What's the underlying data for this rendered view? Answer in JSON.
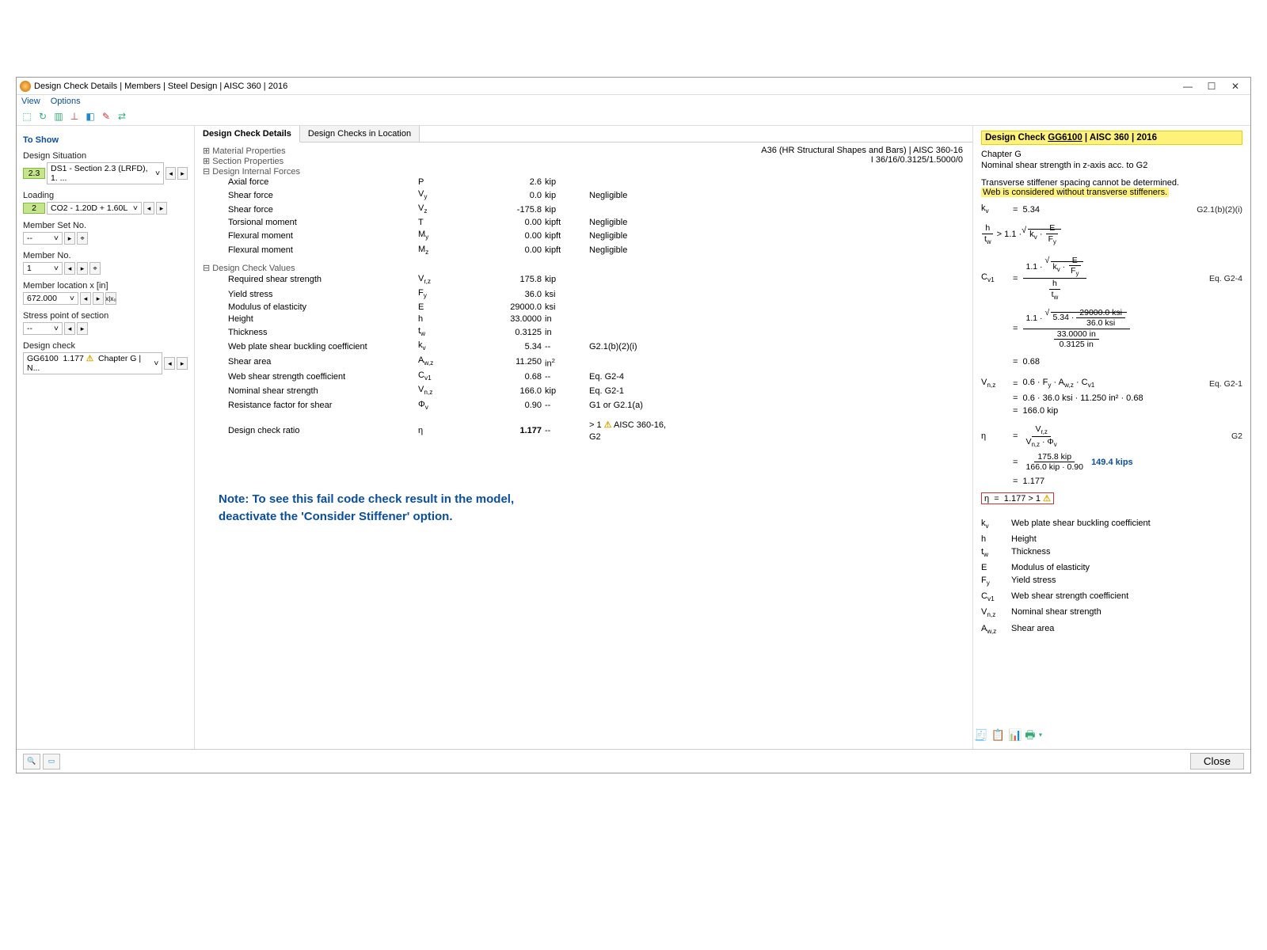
{
  "window": {
    "title": "Design Check Details | Members | Steel Design | AISC 360 | 2016",
    "menu": [
      "View",
      "Options"
    ]
  },
  "left": {
    "toShow": "To Show",
    "designSituation": {
      "label": "Design Situation",
      "badge": "2.3",
      "value": "DS1 - Section 2.3 (LRFD), 1. ..."
    },
    "loading": {
      "label": "Loading",
      "badge": "2",
      "value": "CO2 - 1.20D + 1.60L"
    },
    "memberSet": {
      "label": "Member Set No.",
      "value": "--"
    },
    "memberNo": {
      "label": "Member No.",
      "value": "1"
    },
    "memberLoc": {
      "label": "Member location x [in]",
      "value": "672.000"
    },
    "stressPoint": {
      "label": "Stress point of section",
      "value": "--"
    },
    "designCheck": {
      "label": "Design check",
      "code": "GG6100",
      "ratio": "1.177",
      "ref": "Chapter G | N..."
    }
  },
  "center": {
    "tabs": [
      "Design Check Details",
      "Design Checks in Location"
    ],
    "material": "A36 (HR Structural Shapes and Bars) | AISC 360-16",
    "section": "I 36/16/0.3125/1.5000/0",
    "groups": {
      "matProp": "Material Properties",
      "secProp": "Section Properties",
      "intForces": "Design Internal Forces",
      "checkVals": "Design Check Values"
    },
    "forces": [
      {
        "name": "Axial force",
        "sym": "P",
        "val": "2.6",
        "unit": "kip",
        "note": ""
      },
      {
        "name": "Shear force",
        "sym": "V<sub>y</sub>",
        "val": "0.0",
        "unit": "kip",
        "note": "Negligible"
      },
      {
        "name": "Shear force",
        "sym": "V<sub>z</sub>",
        "val": "-175.8",
        "unit": "kip",
        "note": ""
      },
      {
        "name": "Torsional moment",
        "sym": "T",
        "val": "0.00",
        "unit": "kipft",
        "note": "Negligible"
      },
      {
        "name": "Flexural moment",
        "sym": "M<sub>y</sub>",
        "val": "0.00",
        "unit": "kipft",
        "note": "Negligible"
      },
      {
        "name": "Flexural moment",
        "sym": "M<sub>z</sub>",
        "val": "0.00",
        "unit": "kipft",
        "note": "Negligible"
      }
    ],
    "values": [
      {
        "name": "Required shear strength",
        "sym": "V<sub>r,z</sub>",
        "val": "175.8",
        "unit": "kip",
        "note": ""
      },
      {
        "name": "Yield stress",
        "sym": "F<sub>y</sub>",
        "val": "36.0",
        "unit": "ksi",
        "note": ""
      },
      {
        "name": "Modulus of elasticity",
        "sym": "E",
        "val": "29000.0",
        "unit": "ksi",
        "note": ""
      },
      {
        "name": "Height",
        "sym": "h",
        "val": "33.0000",
        "unit": "in",
        "note": ""
      },
      {
        "name": "Thickness",
        "sym": "t<sub>w</sub>",
        "val": "0.3125",
        "unit": "in",
        "note": ""
      },
      {
        "name": "Web plate shear buckling coefficient",
        "sym": "k<sub>v</sub>",
        "val": "5.34",
        "unit": "--",
        "note": "G2.1(b)(2)(i)"
      },
      {
        "name": "Shear area",
        "sym": "A<sub>w,z</sub>",
        "val": "11.250",
        "unit": "in<sup>2</sup>",
        "note": ""
      },
      {
        "name": "Web shear strength coefficient",
        "sym": "C<sub>v1</sub>",
        "val": "0.68",
        "unit": "--",
        "note": "Eq. G2-4"
      },
      {
        "name": "Nominal shear strength",
        "sym": "V<sub>n,z</sub>",
        "val": "166.0",
        "unit": "kip",
        "note": "Eq. G2-1"
      },
      {
        "name": "Resistance factor for shear",
        "sym": "Φ<sub>v</sub>",
        "val": "0.90",
        "unit": "--",
        "note": "G1 or G2.1(a)"
      }
    ],
    "ratio": {
      "name": "Design check ratio",
      "sym": "η",
      "val": "1.177",
      "unit": "--",
      "note": "> 1 ⚠ AISC 360-16, G2"
    },
    "note1": "Note: To see this fail code check result in the model,",
    "note2": "deactivate the 'Consider Stiffener' option."
  },
  "right": {
    "title": "Design Check GG6100 | AISC 360 | 2016",
    "chapter": "Chapter G",
    "desc": "Nominal shear strength in z-axis acc. to G2",
    "warn1": "Transverse stiffener spacing cannot be determined.",
    "warn2": "Web is considered without transverse stiffeners.",
    "kv": "5.34",
    "kvRef": "G2.1(b)(2)(i)",
    "eqG24": "Eq. G2-4",
    "E": "29000.0 ksi",
    "Fy": "36.0 ksi",
    "h": "33.0000 in",
    "tw": "0.3125 in",
    "Cv1": "0.68",
    "eqG21": "Eq. G2-1",
    "Vnz_expr": "0.6 · F_y · A_w,z · C_v1",
    "Vnz_num": "0.6 · 36.0 ksi · 11.250 in² · 0.68",
    "Vnz": "166.0 kip",
    "G2": "G2",
    "Vrz": "175.8 kip",
    "denom": "166.0 kip · 0.90",
    "extra": "149.4 kips",
    "eta": "1.177",
    "etaFail": "1.177 > 1",
    "legend": [
      {
        "s": "k<sub>v</sub>",
        "d": "Web plate shear buckling coefficient"
      },
      {
        "s": "h",
        "d": "Height"
      },
      {
        "s": "t<sub>w</sub>",
        "d": "Thickness"
      },
      {
        "s": "E",
        "d": "Modulus of elasticity"
      },
      {
        "s": "F<sub>y</sub>",
        "d": "Yield stress"
      },
      {
        "s": "C<sub>v1</sub>",
        "d": "Web shear strength coefficient"
      },
      {
        "s": "V<sub>n,z</sub>",
        "d": "Nominal shear strength"
      },
      {
        "s": "A<sub>w,z</sub>",
        "d": "Shear area"
      }
    ]
  },
  "footer": {
    "close": "Close"
  }
}
